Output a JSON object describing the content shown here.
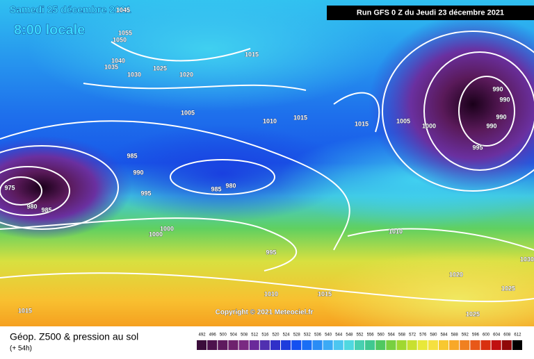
{
  "header": {
    "date": "Samedi 25 décembre 2021",
    "time": "8:00 locale",
    "run": "Run GFS 0 Z du Jeudi 23 décembre 2021"
  },
  "map": {
    "isobar_labels": [
      1045,
      1055,
      1050,
      1040,
      1035,
      1030,
      1025,
      1020,
      1015,
      1005,
      1010,
      1015,
      1015,
      1005,
      1000,
      990,
      990,
      990,
      990,
      995,
      985,
      990,
      995,
      985,
      980,
      975,
      980,
      985,
      1000,
      1000,
      995,
      1010,
      1020,
      1025,
      1030,
      1010,
      1015,
      1015,
      1025
    ],
    "copyright": "Copyright © 2021 Meteociel.fr"
  },
  "footer": {
    "title": "Géop. Z500 & pression au sol",
    "lead": "(+ 54h)"
  },
  "scale": {
    "labels": [
      492,
      496,
      500,
      504,
      508,
      512,
      516,
      520,
      524,
      528,
      532,
      536,
      540,
      544,
      548,
      552,
      556,
      560,
      564,
      568,
      572,
      576,
      580,
      584,
      588,
      592,
      596,
      600,
      604,
      608,
      612
    ],
    "colors": [
      "#3b0d3b",
      "#4d124d",
      "#5e1a5e",
      "#6e226e",
      "#7a2a82",
      "#6a2a9a",
      "#5030b0",
      "#3030c8",
      "#1e3cdc",
      "#1450f0",
      "#1a6ef5",
      "#2a8cf5",
      "#3caaf5",
      "#4cc6f0",
      "#50d8e0",
      "#48d0b0",
      "#40c890",
      "#50c860",
      "#78d040",
      "#a0d830",
      "#c8e030",
      "#e8e83a",
      "#f5e040",
      "#f8c830",
      "#f8a828",
      "#f08020",
      "#e85818",
      "#d83010",
      "#c01010",
      "#900808",
      "#000000"
    ]
  }
}
